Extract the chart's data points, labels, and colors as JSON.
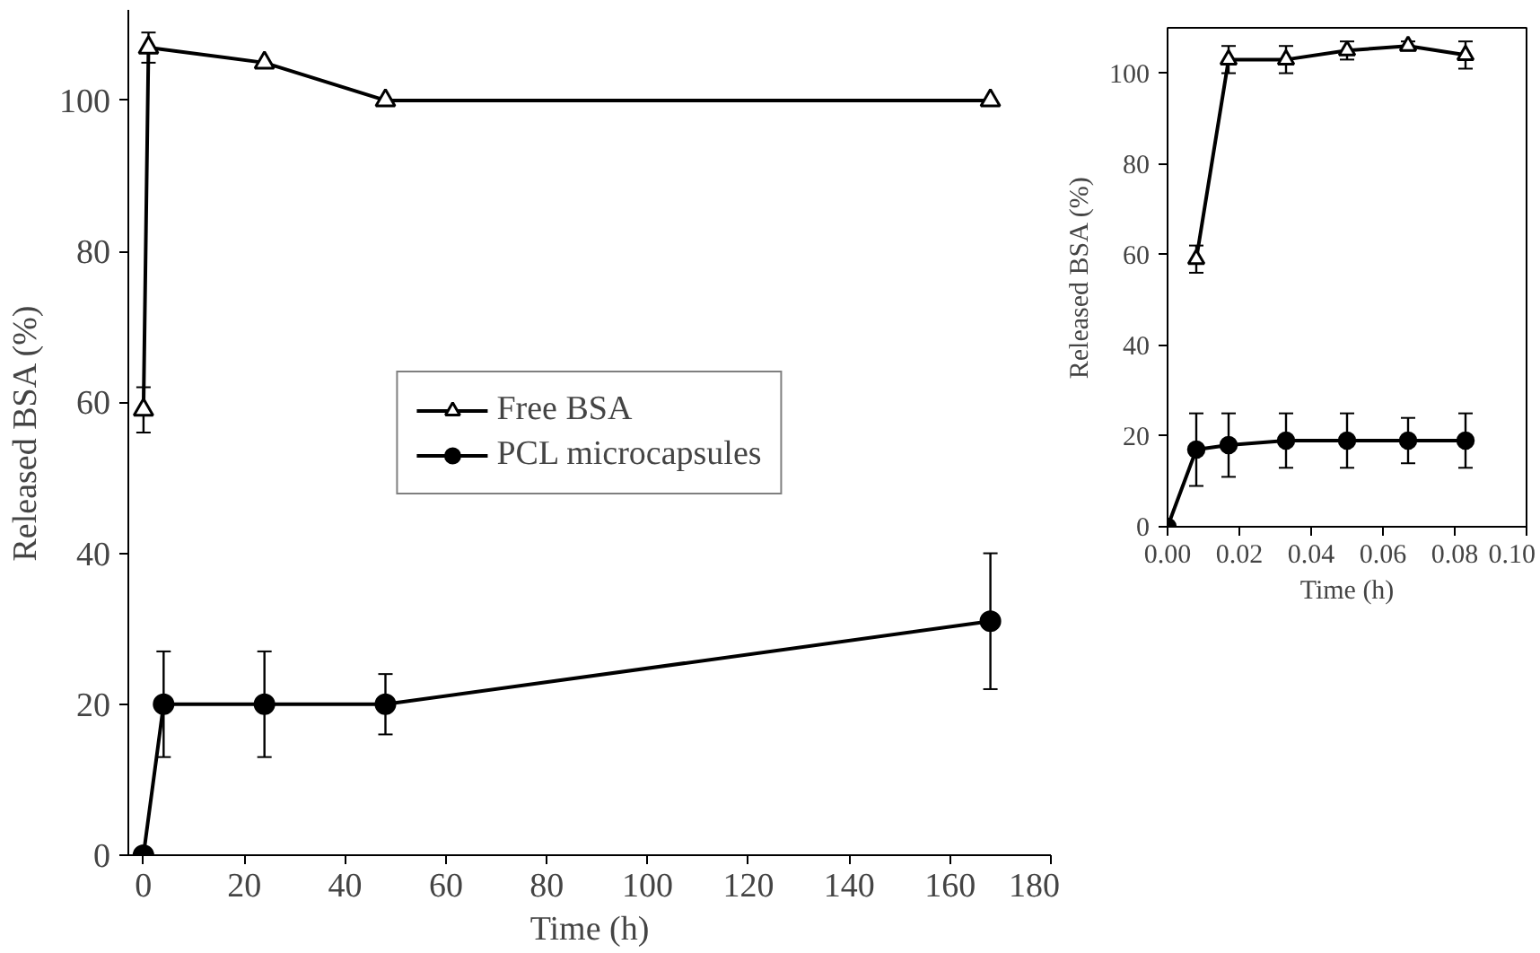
{
  "chart_data": [
    {
      "type": "line",
      "xlabel": "Time (h)",
      "ylabel": "Released BSA (%)",
      "xlim": [
        -3,
        180
      ],
      "xticks": [
        0,
        20,
        40,
        60,
        80,
        100,
        120,
        140,
        160,
        180
      ],
      "ylim": [
        0,
        112
      ],
      "yticks": [
        0,
        20,
        40,
        60,
        80,
        100
      ],
      "grid": false,
      "legend": "center",
      "line_style": "solid",
      "series": [
        {
          "name": "Free BSA",
          "color": "#000000",
          "marker": "triangle",
          "x": [
            0.008,
            1,
            24,
            48,
            168
          ],
          "values": [
            59,
            107,
            105,
            100,
            100
          ],
          "errors": [
            3,
            2,
            null,
            null,
            null
          ]
        },
        {
          "name": "PCL microcapsules",
          "color": "#000000",
          "marker": "circle",
          "x": [
            0,
            4,
            24,
            48,
            168
          ],
          "values": [
            0,
            20,
            20,
            20,
            31
          ],
          "errors": [
            null,
            7,
            7,
            4,
            9
          ]
        }
      ]
    },
    {
      "type": "line",
      "xlabel": "Time (h)",
      "ylabel": "Released BSA (%)",
      "xlim": [
        0,
        0.1
      ],
      "xticks": [
        {
          "value": 0,
          "label": "0.00"
        },
        {
          "value": 0.02,
          "label": "0.02"
        },
        {
          "value": 0.04,
          "label": "0.04"
        },
        {
          "value": 0.06,
          "label": "0.06"
        },
        {
          "value": 0.08,
          "label": "0.08"
        },
        {
          "value": 0.1,
          "label": "0.10"
        }
      ],
      "ylim": [
        0,
        110
      ],
      "yticks": [
        0,
        20,
        40,
        60,
        80,
        100
      ],
      "grid": false,
      "line_style": "solid",
      "series": [
        {
          "color": "#000000",
          "marker": "triangle",
          "x": [
            0.008,
            0.017,
            0.033,
            0.05,
            0.067,
            0.083
          ],
          "values": [
            59,
            103,
            103,
            105,
            106,
            104
          ],
          "errors": [
            3,
            3,
            3,
            2,
            1,
            3
          ]
        },
        {
          "color": "#000000",
          "marker": "circle",
          "x": [
            0,
            0.008,
            0.017,
            0.033,
            0.05,
            0.067,
            0.083
          ],
          "values": [
            0,
            17,
            18,
            19,
            19,
            19,
            19
          ],
          "errors": [
            null,
            8,
            7,
            6,
            6,
            5,
            6
          ]
        }
      ]
    }
  ]
}
